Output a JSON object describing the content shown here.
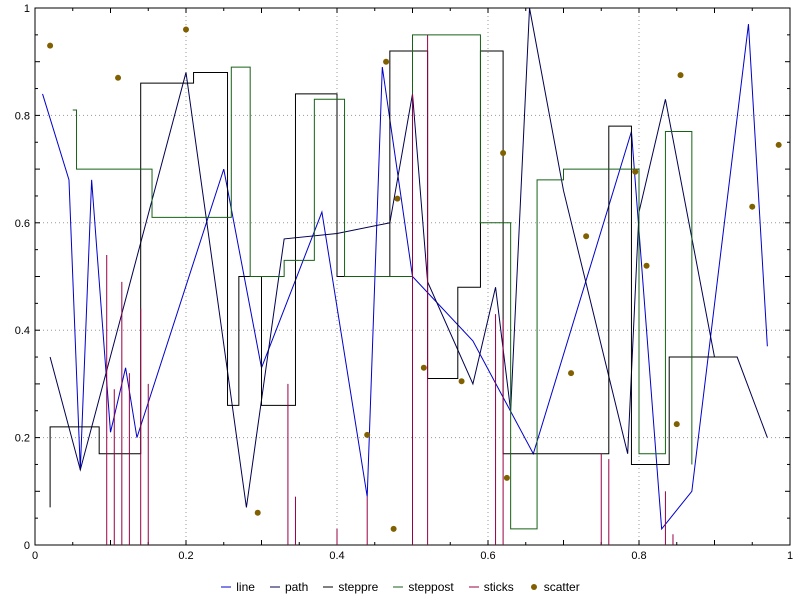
{
  "figure": {
    "background": "#ffffff",
    "axis_color": "#000000",
    "grid_color": "#9a9a9a"
  },
  "axes": {
    "x": {
      "min": 0,
      "max": 1,
      "tick_values": [
        0,
        0.2,
        0.4,
        0.6,
        0.8,
        1
      ],
      "tick_labels": [
        "0",
        "0.2",
        "0.4",
        "0.6",
        "0.8",
        "1"
      ]
    },
    "y": {
      "min": 0,
      "max": 1,
      "tick_values": [
        0,
        0.2,
        0.4,
        0.6,
        0.8,
        1
      ],
      "tick_labels": [
        "0",
        "0.2",
        "0.4",
        "0.6",
        "0.8",
        "1"
      ]
    }
  },
  "legend": {
    "position": "bottom-center",
    "items": [
      "line",
      "path",
      "steppre",
      "steppost",
      "sticks",
      "scatter"
    ]
  },
  "chart_data": {
    "type": "line",
    "title": "",
    "xlabel": "",
    "ylabel": "",
    "xlim": [
      0,
      1
    ],
    "ylim": [
      0,
      1
    ],
    "grid": true,
    "grid_style": "dotted",
    "legend_position": "bottom-center",
    "series": [
      {
        "name": "line",
        "type": "line",
        "color": "#0000cc",
        "points": [
          [
            0.01,
            0.84
          ],
          [
            0.045,
            0.68
          ],
          [
            0.06,
            0.14
          ],
          [
            0.075,
            0.68
          ],
          [
            0.1,
            0.21
          ],
          [
            0.12,
            0.33
          ],
          [
            0.135,
            0.2
          ],
          [
            0.25,
            0.7
          ],
          [
            0.3,
            0.33
          ],
          [
            0.38,
            0.62
          ],
          [
            0.44,
            0.09
          ],
          [
            0.46,
            0.89
          ],
          [
            0.5,
            0.5
          ],
          [
            0.58,
            0.38
          ],
          [
            0.66,
            0.17
          ],
          [
            0.79,
            0.77
          ],
          [
            0.83,
            0.03
          ],
          [
            0.87,
            0.1
          ],
          [
            0.945,
            0.97
          ],
          [
            0.97,
            0.37
          ]
        ]
      },
      {
        "name": "path",
        "type": "line",
        "color": "#000050",
        "points": [
          [
            0.02,
            0.35
          ],
          [
            0.06,
            0.14
          ],
          [
            0.2,
            0.88
          ],
          [
            0.28,
            0.07
          ],
          [
            0.33,
            0.57
          ],
          [
            0.4,
            0.58
          ],
          [
            0.47,
            0.6
          ],
          [
            0.5,
            0.84
          ],
          [
            0.52,
            0.49
          ],
          [
            0.58,
            0.3
          ],
          [
            0.61,
            0.48
          ],
          [
            0.63,
            0.25
          ],
          [
            0.655,
            1.0
          ],
          [
            0.7,
            0.66
          ],
          [
            0.785,
            0.17
          ],
          [
            0.8,
            0.62
          ],
          [
            0.835,
            0.83
          ],
          [
            0.9,
            0.35
          ],
          [
            0.93,
            0.35
          ],
          [
            0.97,
            0.2
          ]
        ]
      },
      {
        "name": "steppre",
        "type": "step-pre",
        "color": "#000000",
        "points": [
          [
            0.02,
            0.07
          ],
          [
            0.085,
            0.22
          ],
          [
            0.14,
            0.17
          ],
          [
            0.21,
            0.86
          ],
          [
            0.255,
            0.88
          ],
          [
            0.27,
            0.26
          ],
          [
            0.3,
            0.5
          ],
          [
            0.345,
            0.26
          ],
          [
            0.4,
            0.84
          ],
          [
            0.47,
            0.5
          ],
          [
            0.52,
            0.92
          ],
          [
            0.56,
            0.31
          ],
          [
            0.59,
            0.48
          ],
          [
            0.62,
            0.92
          ],
          [
            0.66,
            0.17
          ],
          [
            0.76,
            0.17
          ],
          [
            0.79,
            0.78
          ],
          [
            0.84,
            0.15
          ],
          [
            0.86,
            0.35
          ],
          [
            0.93,
            0.35
          ]
        ]
      },
      {
        "name": "steppost",
        "type": "step-post",
        "color": "#176117",
        "points": [
          [
            0.05,
            0.81
          ],
          [
            0.055,
            0.7
          ],
          [
            0.14,
            0.7
          ],
          [
            0.155,
            0.61
          ],
          [
            0.25,
            0.61
          ],
          [
            0.26,
            0.89
          ],
          [
            0.285,
            0.5
          ],
          [
            0.33,
            0.53
          ],
          [
            0.37,
            0.83
          ],
          [
            0.41,
            0.5
          ],
          [
            0.5,
            0.95
          ],
          [
            0.56,
            0.95
          ],
          [
            0.59,
            0.6
          ],
          [
            0.63,
            0.03
          ],
          [
            0.665,
            0.68
          ],
          [
            0.7,
            0.7
          ],
          [
            0.76,
            0.7
          ],
          [
            0.8,
            0.17
          ],
          [
            0.835,
            0.77
          ],
          [
            0.87,
            0.15
          ]
        ]
      },
      {
        "name": "sticks",
        "type": "sticks",
        "color": "#990044",
        "points": [
          [
            0.095,
            0.54
          ],
          [
            0.105,
            0.29
          ],
          [
            0.115,
            0.49
          ],
          [
            0.125,
            0.32
          ],
          [
            0.14,
            0.44
          ],
          [
            0.15,
            0.3
          ],
          [
            0.335,
            0.3
          ],
          [
            0.345,
            0.09
          ],
          [
            0.4,
            0.03
          ],
          [
            0.44,
            0.09
          ],
          [
            0.5,
            0.84
          ],
          [
            0.52,
            0.95
          ],
          [
            0.61,
            0.43
          ],
          [
            0.62,
            0.42
          ],
          [
            0.75,
            0.17
          ],
          [
            0.76,
            0.16
          ],
          [
            0.835,
            0.1
          ],
          [
            0.845,
            0.02
          ]
        ]
      },
      {
        "name": "scatter",
        "type": "scatter",
        "color": "#806000",
        "points": [
          [
            0.02,
            0.93
          ],
          [
            0.11,
            0.87
          ],
          [
            0.2,
            0.96
          ],
          [
            0.295,
            0.06
          ],
          [
            0.44,
            0.205
          ],
          [
            0.465,
            0.9
          ],
          [
            0.475,
            0.03
          ],
          [
            0.48,
            0.645
          ],
          [
            0.515,
            0.33
          ],
          [
            0.565,
            0.305
          ],
          [
            0.62,
            0.73
          ],
          [
            0.625,
            0.125
          ],
          [
            0.71,
            0.32
          ],
          [
            0.73,
            0.575
          ],
          [
            0.795,
            0.695
          ],
          [
            0.81,
            0.52
          ],
          [
            0.85,
            0.225
          ],
          [
            0.855,
            0.875
          ],
          [
            0.95,
            0.63
          ],
          [
            0.985,
            0.745
          ]
        ]
      }
    ]
  }
}
